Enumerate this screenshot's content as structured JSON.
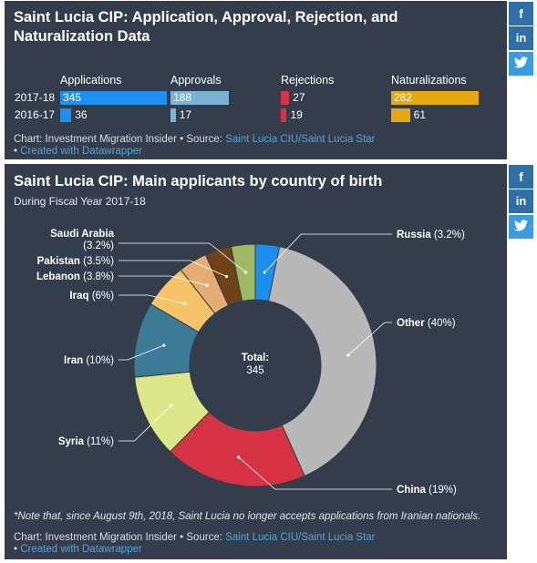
{
  "chart1": {
    "title": "Saint Lucia CIP: Application, Approval, Rejection, and Naturalization Data",
    "chart_data": {
      "type": "bar",
      "columns": [
        "Applications",
        "Approvals",
        "Rejections",
        "Naturalizations"
      ],
      "rows": [
        "2017-18",
        "2016-17"
      ],
      "series": [
        {
          "name": "Applications",
          "values": [
            345,
            36
          ],
          "color": "#1e90ef"
        },
        {
          "name": "Approvals",
          "values": [
            188,
            17
          ],
          "color": "#7bb3d2"
        },
        {
          "name": "Rejections",
          "values": [
            27,
            19
          ],
          "color": "#d63444"
        },
        {
          "name": "Naturalizations",
          "values": [
            282,
            61
          ],
          "color": "#e6a80f"
        }
      ],
      "xlim": [
        0,
        345
      ]
    },
    "footer_prefix": "Chart: Investment Migration Insider • Source: ",
    "footer_source": "Saint Lucia CIU/Saint Lucia Star",
    "footer_bullet": "• ",
    "footer_created": "Created with Datawrapper"
  },
  "chart2": {
    "title": "Saint Lucia CIP: Main applicants by country of birth",
    "subtitle": "During Fiscal Year 2017-18",
    "center_label": "Total:",
    "center_value": "345",
    "chart_data": {
      "type": "pie",
      "slices": [
        {
          "name": "Russia",
          "value": 3.2,
          "label": "Russia (3.2%)",
          "color": "#1a8fee"
        },
        {
          "name": "Other",
          "value": 40,
          "label": "Other (40%)",
          "color": "#b8b8b8"
        },
        {
          "name": "China",
          "value": 19,
          "label": "China (19%)",
          "color": "#d63444"
        },
        {
          "name": "Syria",
          "value": 11,
          "label": "Syria (11%)",
          "color": "#dce78a"
        },
        {
          "name": "Iran",
          "value": 10,
          "label": "Iran (10%)",
          "color": "#3d7a96"
        },
        {
          "name": "Iraq",
          "value": 6,
          "label": "Iraq (6%)",
          "color": "#f6c366"
        },
        {
          "name": "Lebanon",
          "value": 3.8,
          "label": "Lebanon (3.8%)",
          "color": "#e3ad73"
        },
        {
          "name": "Pakistan",
          "value": 3.5,
          "label": "Pakistan (3.5%)",
          "color": "#6f4317"
        },
        {
          "name": "Saudi Arabia",
          "value": 3.2,
          "label_line1": "Saudi Arabia",
          "label_line2": "(3.2%)",
          "color": "#9fb862"
        }
      ]
    },
    "note": "*Note that, since August 9th, 2018, Saint Lucia no longer accepts applications from Iranian nationals.",
    "footer_prefix": "Chart: Investment Migration Insider • Source: ",
    "footer_source": "Saint Lucia CIU/Saint Lucia Star",
    "footer_bullet": "• ",
    "footer_created": "Created with Datawrapper"
  },
  "social": {
    "facebook": "f",
    "linkedin": "in",
    "twitter": "twitter-icon"
  }
}
